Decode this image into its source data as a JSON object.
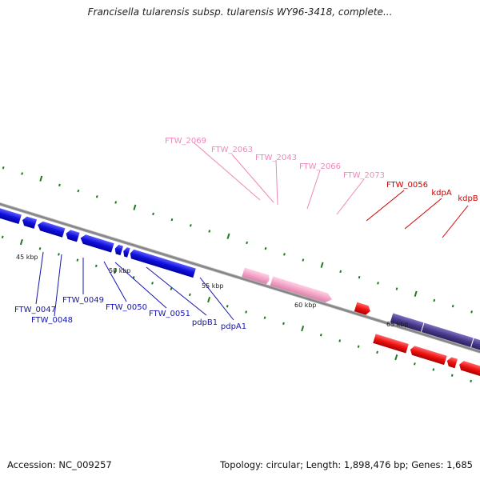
{
  "title": "Francisella tularensis subsp. tularensis WY96-3418, complete...",
  "footer": {
    "accession": "Accession: NC_009257",
    "summary": "Topology: circular; Length: 1,898,476 bp; Genes: 1,685"
  },
  "colors": {
    "blue_genes": "#1010dd",
    "pink_genes": "#f4a6c8",
    "red_genes": "#ee1111",
    "purple_genes": "#4a3a8c",
    "green_genes": "#33cc33",
    "ticks": "#1f7a1f",
    "backbone": "#8a8a8a",
    "blue_labels": "#1515aa",
    "pink_labels": "#ee88bb",
    "red_labels": "#cc0000"
  },
  "scale_labels": [
    "45 kbp",
    "50 kbp",
    "55 kbp",
    "60 kbp",
    "65 kbp"
  ],
  "gene_labels": {
    "blue": [
      "FTW_0047",
      "FTW_0048",
      "FTW_0049",
      "FTW_0050",
      "FTW_0051",
      "pdpB1",
      "pdpA1"
    ],
    "pink": [
      "FTW_2069",
      "FTW_2063",
      "FTW_2043",
      "FTW_2066",
      "FTW_2073"
    ],
    "red": [
      "FTW_0056",
      "kdpA",
      "kdpB"
    ]
  }
}
